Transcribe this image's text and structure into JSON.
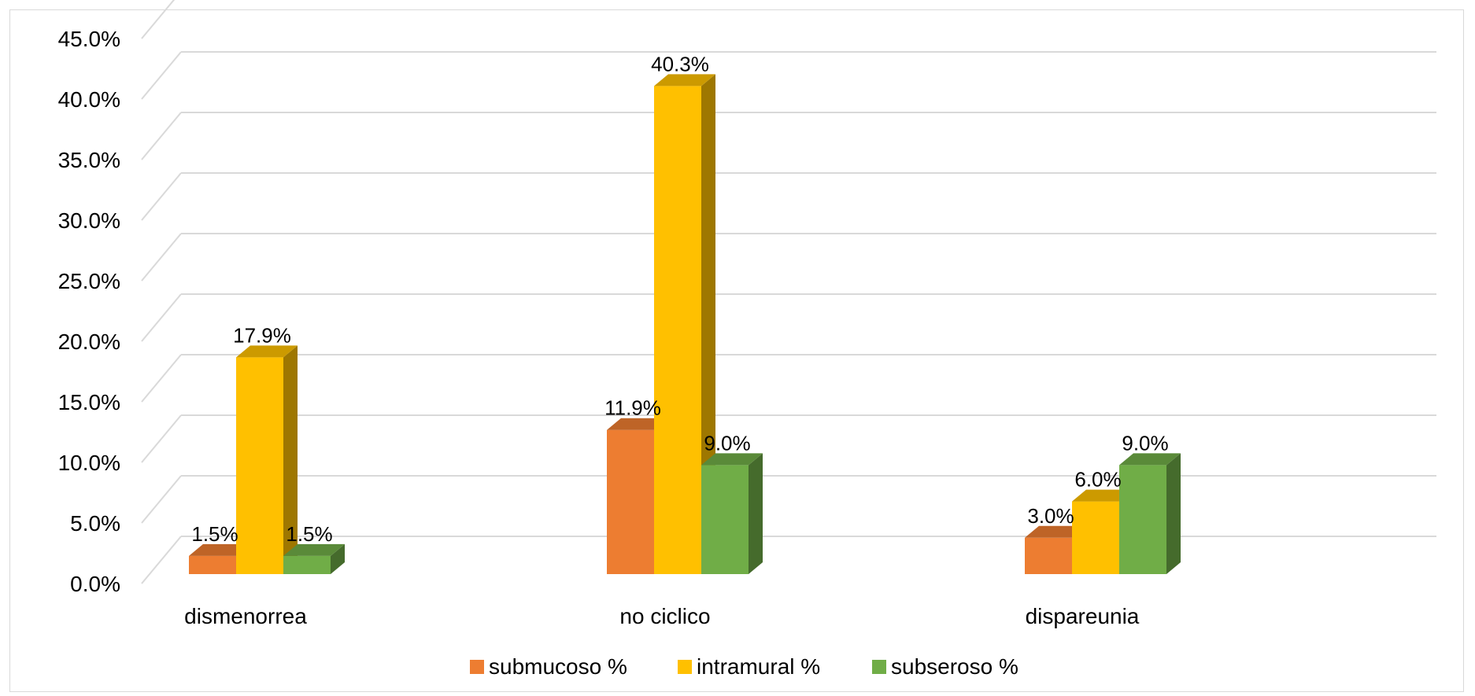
{
  "chart_data": {
    "type": "bar",
    "title": "",
    "xlabel": "",
    "ylabel": "",
    "categories": [
      "dismenorrea",
      "no ciclico",
      "dispareunia"
    ],
    "series": [
      {
        "name": "submucoso %",
        "values": [
          1.5,
          11.9,
          3.0
        ],
        "labels": [
          "1.5%",
          "11.9%",
          "3.0%"
        ],
        "color": "#ed7d31"
      },
      {
        "name": "intramural %",
        "values": [
          17.9,
          40.3,
          6.0
        ],
        "labels": [
          "17.9%",
          "40.3%",
          "6.0%"
        ],
        "color": "#ffc000"
      },
      {
        "name": "subseroso %",
        "values": [
          1.5,
          9.0,
          9.0
        ],
        "labels": [
          "1.5%",
          "9.0%",
          "9.0%"
        ],
        "color": "#70ad47"
      }
    ],
    "ylim": [
      0,
      45
    ],
    "yticks": [
      0,
      5,
      10,
      15,
      20,
      25,
      30,
      35,
      40,
      45
    ],
    "ytick_labels": [
      "0.0%",
      "5.0%",
      "10.0%",
      "15.0%",
      "20.0%",
      "25.0%",
      "30.0%",
      "35.0%",
      "40.0%",
      "45.0%"
    ],
    "grid": true,
    "legend": "bottom",
    "style": "3d-clustered-column"
  }
}
